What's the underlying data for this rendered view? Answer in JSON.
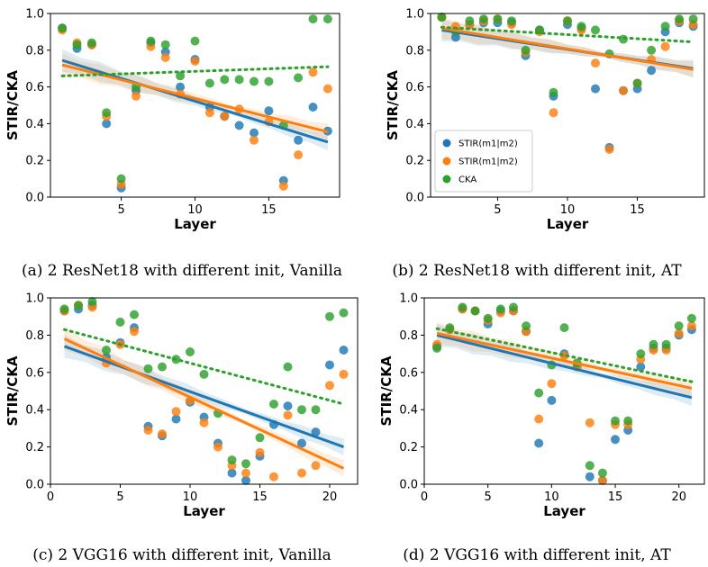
{
  "colors": {
    "series1": "#1f77b4",
    "series2": "#ff7f0e",
    "series3": "#2ca02c"
  },
  "chart_data": [
    {
      "type": "scatter",
      "caption": "(a) 2 ResNet18 with different init, Vanilla",
      "xlabel": "Layer",
      "ylabel": "STIR/CKA",
      "xlim": [
        0.2,
        19.8
      ],
      "ylim": [
        0.0,
        1.0
      ],
      "xticks": [
        5,
        10,
        15
      ],
      "yticks": [
        0.0,
        0.2,
        0.4,
        0.6,
        0.8,
        1.0
      ],
      "x": [
        1,
        2,
        3,
        4,
        5,
        6,
        7,
        8,
        9,
        10,
        11,
        12,
        13,
        14,
        15,
        16,
        17,
        18,
        19
      ],
      "series": [
        {
          "label": "STIR(m1|m2)",
          "values": [
            0.92,
            0.81,
            0.83,
            0.4,
            0.05,
            0.58,
            0.84,
            0.79,
            0.6,
            0.75,
            0.49,
            0.44,
            0.39,
            0.35,
            0.47,
            0.09,
            0.31,
            0.49,
            0.36
          ],
          "fit": [
            0.745,
            0.3
          ],
          "fit_dotted": false
        },
        {
          "label": "STIR(m1|m2)",
          "values": [
            0.91,
            0.84,
            0.83,
            0.44,
            0.07,
            0.55,
            0.82,
            0.76,
            0.56,
            0.74,
            0.46,
            0.44,
            0.48,
            0.31,
            0.41,
            0.06,
            0.23,
            0.68,
            0.59
          ],
          "fit": [
            0.72,
            0.355
          ],
          "fit_dotted": false
        },
        {
          "label": "CKA",
          "values": [
            0.92,
            0.83,
            0.84,
            0.46,
            0.1,
            0.6,
            0.85,
            0.83,
            0.66,
            0.85,
            0.62,
            0.64,
            0.64,
            0.63,
            0.63,
            0.39,
            0.65,
            0.97,
            0.97
          ],
          "fit": [
            0.66,
            0.71
          ],
          "fit_dotted": true
        }
      ]
    },
    {
      "type": "scatter",
      "caption": "(b) 2 ResNet18 with different init, AT",
      "xlabel": "Layer",
      "ylabel": "STIR/CKA",
      "xlim": [
        0.2,
        19.8
      ],
      "ylim": [
        0.0,
        1.0
      ],
      "xticks": [
        5,
        10,
        15
      ],
      "yticks": [
        0.0,
        0.2,
        0.4,
        0.6,
        0.8,
        1.0
      ],
      "x": [
        1,
        2,
        3,
        4,
        5,
        6,
        7,
        8,
        9,
        10,
        11,
        12,
        13,
        14,
        15,
        16,
        17,
        18,
        19
      ],
      "legend": [
        "STIR(m1|m2)",
        "STIR(m1|m2)",
        "CKA"
      ],
      "series": [
        {
          "label": "STIR(m1|m2)",
          "values": [
            0.98,
            0.87,
            0.94,
            0.95,
            0.95,
            0.95,
            0.77,
            0.91,
            0.55,
            0.94,
            0.92,
            0.59,
            0.27,
            0.58,
            0.59,
            0.69,
            0.9,
            0.95,
            0.93
          ],
          "fit": [
            0.91,
            0.7
          ],
          "fit_dotted": false
        },
        {
          "label": "STIR(m1|m2)",
          "values": [
            0.98,
            0.93,
            0.94,
            0.96,
            0.97,
            0.94,
            0.79,
            0.9,
            0.46,
            0.96,
            0.91,
            0.73,
            0.26,
            0.58,
            0.62,
            0.75,
            0.82,
            0.96,
            0.94
          ],
          "fit": [
            0.92,
            0.695
          ],
          "fit_dotted": false
        },
        {
          "label": "CKA",
          "values": [
            0.98,
            0.9,
            0.96,
            0.97,
            0.97,
            0.96,
            0.8,
            0.91,
            0.57,
            0.96,
            0.93,
            0.91,
            0.78,
            0.86,
            0.62,
            0.8,
            0.93,
            0.97,
            0.97
          ],
          "fit": [
            0.925,
            0.845
          ],
          "fit_dotted": true
        }
      ]
    },
    {
      "type": "scatter",
      "caption": "(c) 2 VGG16 with different init, Vanilla",
      "xlabel": "Layer",
      "ylabel": "STIR/CKA",
      "xlim": [
        0.0,
        22.0
      ],
      "ylim": [
        0.0,
        1.0
      ],
      "xticks": [
        0,
        5,
        10,
        15,
        20
      ],
      "yticks": [
        0.0,
        0.2,
        0.4,
        0.6,
        0.8,
        1.0
      ],
      "x": [
        1,
        2,
        3,
        4,
        5,
        6,
        7,
        8,
        9,
        10,
        11,
        12,
        13,
        14,
        15,
        16,
        17,
        18,
        19,
        20,
        21
      ],
      "series": [
        {
          "label": "STIR(m1|m2)",
          "values": [
            0.93,
            0.94,
            0.96,
            0.68,
            0.76,
            0.84,
            0.31,
            0.26,
            0.35,
            0.44,
            0.36,
            0.22,
            0.06,
            0.02,
            0.15,
            0.32,
            0.42,
            0.22,
            0.28,
            0.64,
            0.72
          ],
          "fit": [
            0.74,
            0.2
          ],
          "fit_dotted": false
        },
        {
          "label": "STIR(m1|m2)",
          "values": [
            0.93,
            0.96,
            0.95,
            0.65,
            0.75,
            0.82,
            0.29,
            0.27,
            0.39,
            0.45,
            0.33,
            0.2,
            0.1,
            0.06,
            0.17,
            0.04,
            0.37,
            0.06,
            0.1,
            0.53,
            0.59
          ],
          "fit": [
            0.78,
            0.085
          ],
          "fit_dotted": false
        },
        {
          "label": "CKA",
          "values": [
            0.94,
            0.96,
            0.98,
            0.72,
            0.87,
            0.91,
            0.62,
            0.63,
            0.67,
            0.71,
            0.59,
            0.38,
            0.13,
            0.11,
            0.25,
            0.43,
            0.63,
            0.4,
            0.4,
            0.9,
            0.92
          ],
          "fit": [
            0.83,
            0.43
          ],
          "fit_dotted": true
        }
      ]
    },
    {
      "type": "scatter",
      "caption": "(d) 2 VGG16 with different init, AT",
      "xlabel": "Layer",
      "ylabel": "STIR/CKA",
      "xlim": [
        0.0,
        22.0
      ],
      "ylim": [
        0.0,
        1.0
      ],
      "xticks": [
        0,
        5,
        10,
        15,
        20
      ],
      "yticks": [
        0.0,
        0.2,
        0.4,
        0.6,
        0.8,
        1.0
      ],
      "x": [
        1,
        2,
        3,
        4,
        5,
        6,
        7,
        8,
        9,
        10,
        11,
        12,
        13,
        14,
        15,
        16,
        17,
        18,
        19,
        20,
        21
      ],
      "series": [
        {
          "label": "STIR(m1|m2)",
          "values": [
            0.74,
            0.83,
            0.94,
            0.93,
            0.86,
            0.93,
            0.93,
            0.82,
            0.22,
            0.45,
            0.7,
            0.63,
            0.04,
            0.02,
            0.24,
            0.29,
            0.63,
            0.73,
            0.73,
            0.8,
            0.83
          ],
          "fit": [
            0.8,
            0.465
          ],
          "fit_dotted": false
        },
        {
          "label": "STIR(m1|m2)",
          "values": [
            0.75,
            0.83,
            0.94,
            0.93,
            0.88,
            0.92,
            0.93,
            0.82,
            0.35,
            0.54,
            0.69,
            0.63,
            0.33,
            0.02,
            0.32,
            0.32,
            0.67,
            0.72,
            0.72,
            0.81,
            0.85
          ],
          "fit": [
            0.81,
            0.515
          ],
          "fit_dotted": false
        },
        {
          "label": "CKA",
          "values": [
            0.73,
            0.84,
            0.95,
            0.93,
            0.89,
            0.94,
            0.95,
            0.85,
            0.49,
            0.64,
            0.84,
            0.65,
            0.1,
            0.06,
            0.34,
            0.34,
            0.7,
            0.75,
            0.75,
            0.85,
            0.89
          ],
          "fit": [
            0.835,
            0.55
          ],
          "fit_dotted": true
        }
      ]
    }
  ]
}
